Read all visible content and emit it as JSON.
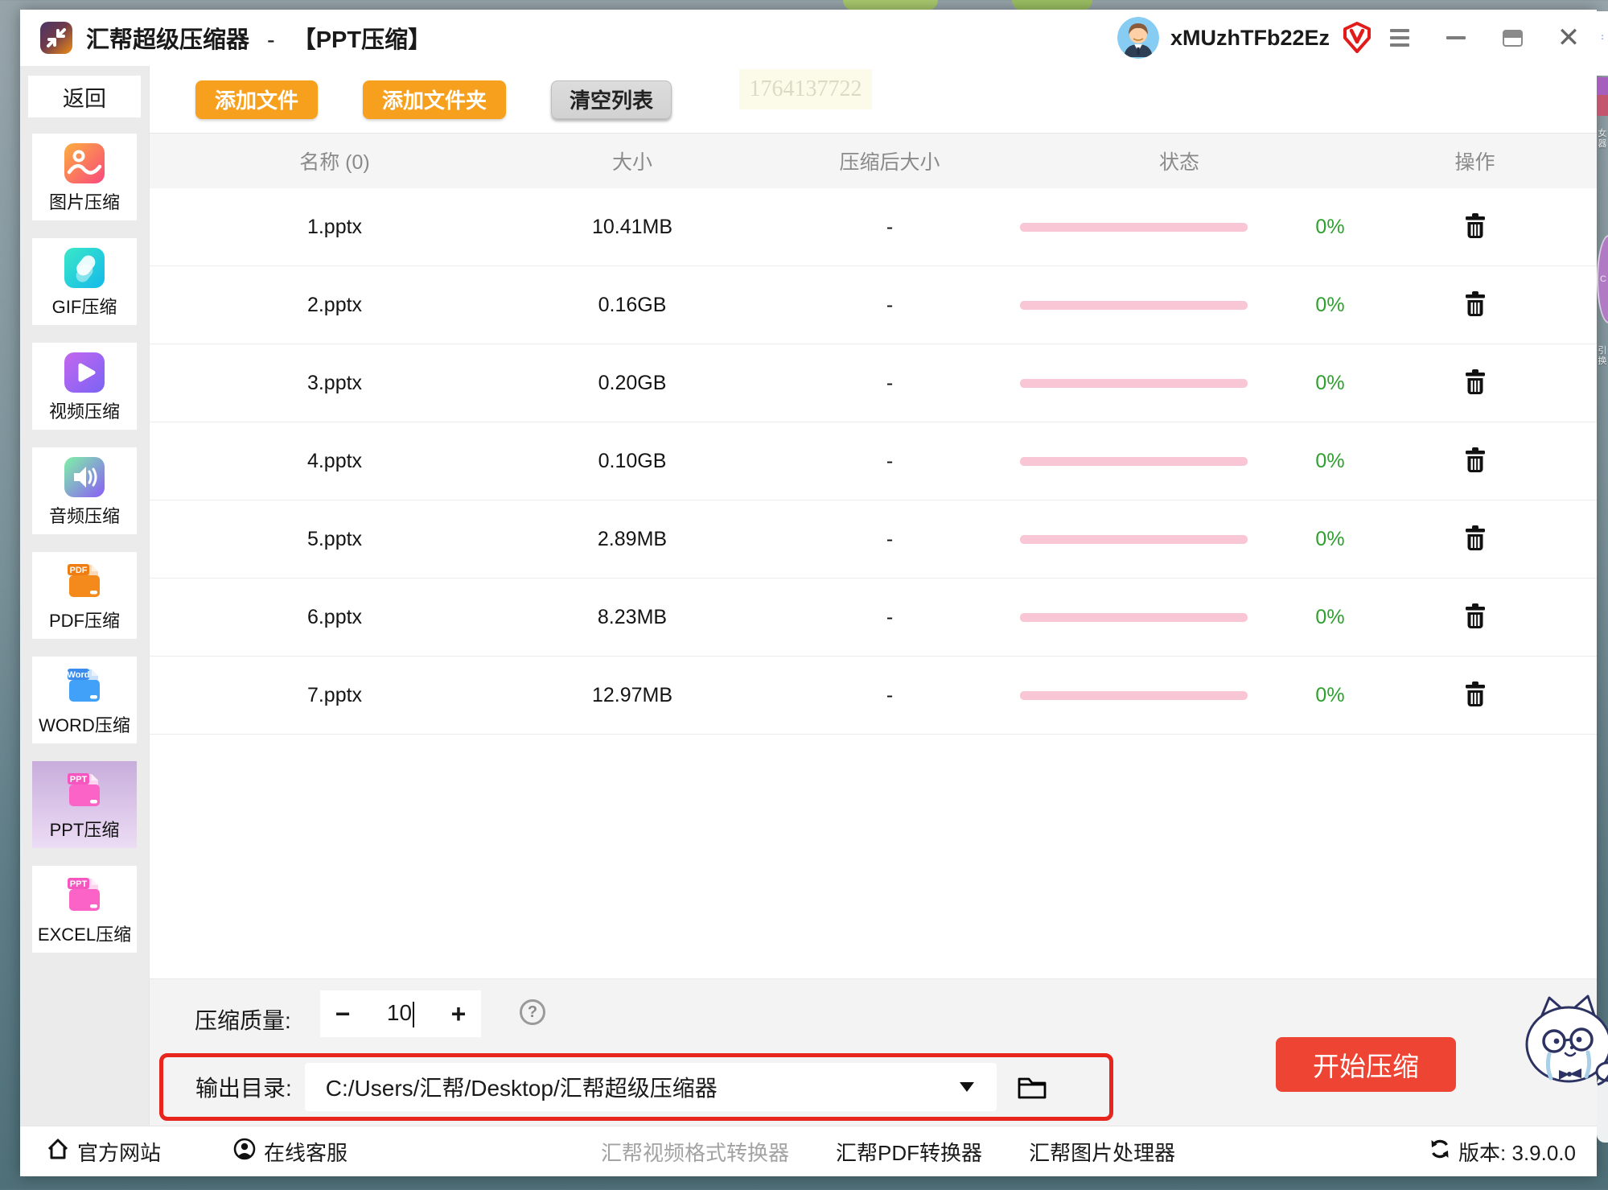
{
  "window": {
    "title": "汇帮超级压缩器",
    "title_separator": "-",
    "mode": "【PPT压缩】",
    "username": "xMUzhTFb22Ez",
    "watermark": "1764137722"
  },
  "sidebar": {
    "back_label": "返回",
    "items": [
      {
        "key": "image",
        "label": "图片压缩",
        "icon": "image-compress-icon",
        "selected": false
      },
      {
        "key": "gif",
        "label": "GIF压缩",
        "icon": "gif-compress-icon",
        "selected": false
      },
      {
        "key": "video",
        "label": "视频压缩",
        "icon": "video-compress-icon",
        "selected": false
      },
      {
        "key": "audio",
        "label": "音频压缩",
        "icon": "audio-compress-icon",
        "selected": false
      },
      {
        "key": "pdf",
        "label": "PDF压缩",
        "icon": "pdf-folder-icon",
        "badge": "PDF",
        "selected": false
      },
      {
        "key": "word",
        "label": "WORD压缩",
        "icon": "word-folder-icon",
        "badge": "Word",
        "selected": false
      },
      {
        "key": "ppt",
        "label": "PPT压缩",
        "icon": "ppt-folder-icon",
        "badge": "PPT",
        "selected": true
      },
      {
        "key": "excel",
        "label": "EXCEL压缩",
        "icon": "ppt-folder-icon",
        "badge": "PPT",
        "selected": false
      }
    ]
  },
  "toolbar": {
    "add_file": "添加文件",
    "add_folder": "添加文件夹",
    "clear_list": "清空列表"
  },
  "table": {
    "columns": [
      "名称 (0)",
      "大小",
      "压缩后大小",
      "状态",
      "操作"
    ],
    "rows": [
      {
        "name": "1.pptx",
        "size": "10.41MB",
        "compressed": "-",
        "percent": "0%"
      },
      {
        "name": "2.pptx",
        "size": "0.16GB",
        "compressed": "-",
        "percent": "0%"
      },
      {
        "name": "3.pptx",
        "size": "0.20GB",
        "compressed": "-",
        "percent": "0%"
      },
      {
        "name": "4.pptx",
        "size": "0.10GB",
        "compressed": "-",
        "percent": "0%"
      },
      {
        "name": "5.pptx",
        "size": "2.89MB",
        "compressed": "-",
        "percent": "0%"
      },
      {
        "name": "6.pptx",
        "size": "8.23MB",
        "compressed": "-",
        "percent": "0%"
      },
      {
        "name": "7.pptx",
        "size": "12.97MB",
        "compressed": "-",
        "percent": "0%"
      }
    ]
  },
  "controls": {
    "quality_label": "压缩质量:",
    "minus": "−",
    "quality_value": "10",
    "plus": "+",
    "help_glyph": "?",
    "output_label": "输出目录:",
    "output_path": "C:/Users/汇帮/Desktop/汇帮超级压缩器",
    "start_button": "开始压缩"
  },
  "footer": {
    "official_site": "官方网站",
    "online_service": "在线客服",
    "links": [
      "汇帮视频格式转换器",
      "汇帮PDF转换器",
      "汇帮图片处理器"
    ],
    "version_label": "版本: 3.9.0.0"
  },
  "colors": {
    "accent_orange": "#f7a01d",
    "start_red": "#ee4433",
    "highlight_red": "#e8251c",
    "progress_pink": "#f8c6d4",
    "percent_green": "#2da02d",
    "selected_purple": "#c8addc"
  }
}
